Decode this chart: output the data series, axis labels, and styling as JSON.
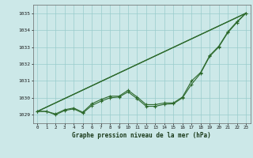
{
  "title": "Graphe pression niveau de la mer (hPa)",
  "hours": [
    0,
    1,
    2,
    3,
    4,
    5,
    6,
    7,
    8,
    9,
    10,
    11,
    12,
    13,
    14,
    15,
    16,
    17,
    18,
    19,
    20,
    21,
    22,
    23
  ],
  "ylim": [
    1028.5,
    1035.5
  ],
  "yticks": [
    1029,
    1030,
    1031,
    1032,
    1033,
    1034,
    1035
  ],
  "bg_color": "#cce8e8",
  "grid_color": "#99cccc",
  "line_color": "#2d6a2d",
  "straight_line1": [
    [
      0,
      23
    ],
    [
      1029.2,
      1035.0
    ]
  ],
  "straight_line2": [
    [
      0,
      23
    ],
    [
      1029.2,
      1035.0
    ]
  ],
  "wavy_line": [
    1029.2,
    1029.2,
    1029.0,
    1029.25,
    1029.35,
    1029.1,
    1029.55,
    1029.8,
    1030.0,
    1030.05,
    1030.35,
    1029.95,
    1029.5,
    1029.5,
    1029.62,
    1029.65,
    1030.0,
    1030.8,
    1031.45,
    1032.45,
    1033.0,
    1033.85,
    1034.45,
    1035.0
  ],
  "smooth_line": [
    1029.2,
    1029.2,
    1029.05,
    1029.3,
    1029.4,
    1029.15,
    1029.65,
    1029.9,
    1030.1,
    1030.1,
    1030.45,
    1030.05,
    1029.6,
    1029.6,
    1029.7,
    1029.7,
    1030.05,
    1031.0,
    1031.5,
    1032.5,
    1033.05,
    1033.9,
    1034.5,
    1035.0
  ],
  "figsize": [
    3.2,
    2.0
  ],
  "dpi": 100
}
